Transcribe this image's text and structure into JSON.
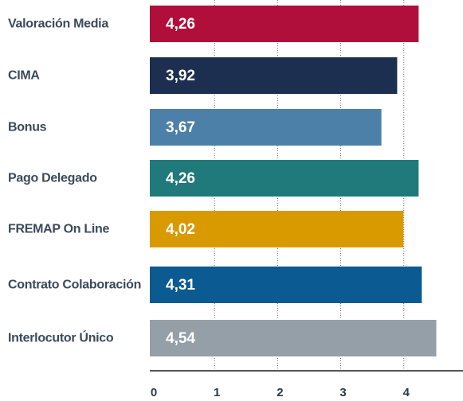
{
  "chart_data": {
    "type": "barh",
    "categories": [
      "Valoración Media",
      "CIMA",
      "Bonus",
      "Pago Delegado",
      "FREMAP On Line",
      "Contrato Colaboración",
      "Interlocutor Único"
    ],
    "values": [
      4.26,
      3.92,
      3.67,
      4.26,
      4.02,
      4.31,
      4.54
    ],
    "value_labels": [
      "4,26",
      "3,92",
      "3,67",
      "4,26",
      "4,02",
      "4,31",
      "4,54"
    ],
    "colors": [
      "#b10f3b",
      "#1d2f50",
      "#4d80a9",
      "#20797a",
      "#d99a00",
      "#0b5a92",
      "#959fa7"
    ],
    "xlim": [
      0,
      4.9
    ],
    "xticks": [
      0,
      1,
      2,
      3,
      4
    ],
    "grid": true
  }
}
